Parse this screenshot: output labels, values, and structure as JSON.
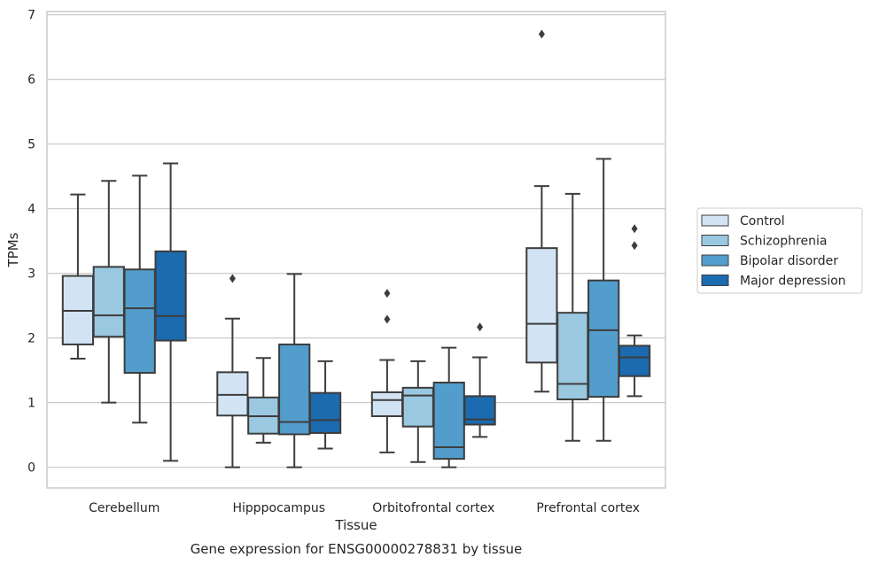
{
  "chart_data": {
    "type": "box",
    "title": "",
    "caption": "Gene expression for ENSG00000278831 by tissue",
    "xlabel": "Tissue",
    "ylabel": "TPMs",
    "ylim": [
      -0.32,
      7.05
    ],
    "yticks": [
      0,
      1,
      2,
      3,
      4,
      5,
      6,
      7
    ],
    "grid": true,
    "legend_position": "right",
    "categories": [
      "Cerebellum",
      "Hipppocampus",
      "Orbitofrontal cortex",
      "Prefrontal cortex"
    ],
    "series": [
      {
        "name": "Control",
        "color": "#d2e3f3",
        "boxes": [
          {
            "whislo": 1.68,
            "q1": 1.9,
            "med": 2.42,
            "q3": 2.96,
            "whishi": 4.22,
            "fliers": []
          },
          {
            "whislo": 0.0,
            "q1": 0.8,
            "med": 1.12,
            "q3": 1.47,
            "whishi": 2.3,
            "fliers": [
              2.92
            ]
          },
          {
            "whislo": 0.23,
            "q1": 0.79,
            "med": 1.04,
            "q3": 1.16,
            "whishi": 1.66,
            "fliers": [
              2.29,
              2.69
            ]
          },
          {
            "whislo": 1.17,
            "q1": 1.62,
            "med": 2.22,
            "q3": 3.39,
            "whishi": 4.35,
            "fliers": [
              6.7
            ]
          }
        ]
      },
      {
        "name": "Schizophrenia",
        "color": "#9ac8e0",
        "boxes": [
          {
            "whislo": 1.0,
            "q1": 2.02,
            "med": 2.35,
            "q3": 3.1,
            "whishi": 4.43,
            "fliers": []
          },
          {
            "whislo": 0.38,
            "q1": 0.52,
            "med": 0.79,
            "q3": 1.08,
            "whishi": 1.69,
            "fliers": []
          },
          {
            "whislo": 0.08,
            "q1": 0.63,
            "med": 1.11,
            "q3": 1.23,
            "whishi": 1.64,
            "fliers": []
          },
          {
            "whislo": 0.41,
            "q1": 1.05,
            "med": 1.29,
            "q3": 2.39,
            "whishi": 4.23,
            "fliers": []
          }
        ]
      },
      {
        "name": "Bipolar disorder",
        "color": "#529dcc",
        "boxes": [
          {
            "whislo": 0.69,
            "q1": 1.46,
            "med": 2.46,
            "q3": 3.06,
            "whishi": 4.51,
            "fliers": []
          },
          {
            "whislo": 0.0,
            "q1": 0.51,
            "med": 0.7,
            "q3": 1.9,
            "whishi": 2.99,
            "fliers": []
          },
          {
            "whislo": 0.0,
            "q1": 0.13,
            "med": 0.31,
            "q3": 1.31,
            "whishi": 1.85,
            "fliers": []
          },
          {
            "whislo": 0.41,
            "q1": 1.09,
            "med": 2.12,
            "q3": 2.89,
            "whishi": 4.77,
            "fliers": []
          }
        ]
      },
      {
        "name": "Major depression",
        "color": "#1c6aaf",
        "boxes": [
          {
            "whislo": 0.1,
            "q1": 1.96,
            "med": 2.34,
            "q3": 3.34,
            "whishi": 4.7,
            "fliers": []
          },
          {
            "whislo": 0.29,
            "q1": 0.53,
            "med": 0.73,
            "q3": 1.15,
            "whishi": 1.64,
            "fliers": []
          },
          {
            "whislo": 0.47,
            "q1": 0.66,
            "med": 0.74,
            "q3": 1.1,
            "whishi": 1.7,
            "fliers": [
              2.17
            ]
          },
          {
            "whislo": 1.1,
            "q1": 1.41,
            "med": 1.7,
            "q3": 1.88,
            "whishi": 2.04,
            "fliers": [
              3.43,
              3.69
            ]
          }
        ]
      }
    ]
  }
}
